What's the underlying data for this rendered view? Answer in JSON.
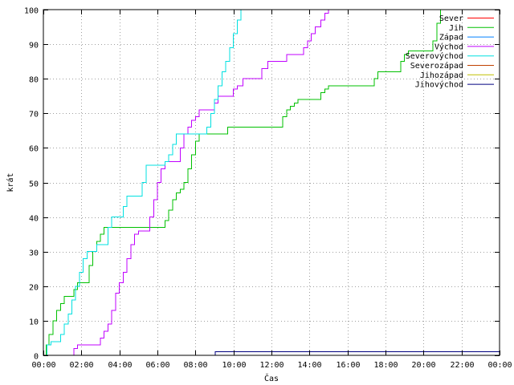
{
  "chart_data": {
    "type": "line",
    "xlabel": "Čas",
    "ylabel": "krát",
    "xlim": [
      0,
      24
    ],
    "ylim": [
      0,
      100
    ],
    "grid": true,
    "legend_position": "top-right",
    "x_tick_labels": [
      "00:00",
      "02:00",
      "04:00",
      "06:00",
      "08:00",
      "10:00",
      "12:00",
      "14:00",
      "16:00",
      "18:00",
      "20:00",
      "22:00",
      "00:00"
    ],
    "y_tick_labels": [
      "0",
      "10",
      "20",
      "30",
      "40",
      "50",
      "60",
      "70",
      "80",
      "90",
      "100"
    ],
    "series": [
      {
        "name": "Sever",
        "color": "#ff0000",
        "points": []
      },
      {
        "name": "Jih",
        "color": "#00c000",
        "points": [
          [
            0,
            0
          ],
          [
            0.15,
            3
          ],
          [
            0.3,
            6
          ],
          [
            0.5,
            10
          ],
          [
            0.7,
            13
          ],
          [
            0.9,
            15
          ],
          [
            1.1,
            17
          ],
          [
            1.4,
            17
          ],
          [
            1.6,
            19
          ],
          [
            1.8,
            21
          ],
          [
            2.2,
            21
          ],
          [
            2.4,
            26
          ],
          [
            2.6,
            30
          ],
          [
            2.8,
            33
          ],
          [
            3.0,
            35
          ],
          [
            3.2,
            37
          ],
          [
            6.2,
            37
          ],
          [
            6.4,
            39
          ],
          [
            6.6,
            42
          ],
          [
            6.8,
            45
          ],
          [
            7.0,
            47
          ],
          [
            7.2,
            48
          ],
          [
            7.4,
            50
          ],
          [
            7.6,
            54
          ],
          [
            7.8,
            58
          ],
          [
            8.0,
            62
          ],
          [
            8.2,
            64
          ],
          [
            9.6,
            64
          ],
          [
            9.7,
            66
          ],
          [
            12.5,
            66
          ],
          [
            12.6,
            69
          ],
          [
            12.8,
            71
          ],
          [
            13.0,
            72
          ],
          [
            13.2,
            73
          ],
          [
            13.4,
            74
          ],
          [
            14.3,
            74
          ],
          [
            14.6,
            76
          ],
          [
            14.8,
            77
          ],
          [
            15.0,
            78
          ],
          [
            17.2,
            78
          ],
          [
            17.4,
            80
          ],
          [
            17.6,
            82
          ],
          [
            18.6,
            82
          ],
          [
            18.8,
            85
          ],
          [
            19.0,
            87
          ],
          [
            19.2,
            88
          ],
          [
            20.3,
            88
          ],
          [
            20.5,
            91
          ],
          [
            20.7,
            96
          ],
          [
            20.9,
            100
          ]
        ]
      },
      {
        "name": "Západ",
        "color": "#0080ff",
        "points": []
      },
      {
        "name": "Východ",
        "color": "#c000ff",
        "points": [
          [
            0,
            0
          ],
          [
            1.5,
            0
          ],
          [
            1.6,
            2
          ],
          [
            1.8,
            3
          ],
          [
            2.9,
            3
          ],
          [
            3.0,
            5
          ],
          [
            3.2,
            7
          ],
          [
            3.4,
            9
          ],
          [
            3.6,
            13
          ],
          [
            3.8,
            18
          ],
          [
            4.0,
            21
          ],
          [
            4.2,
            24
          ],
          [
            4.4,
            28
          ],
          [
            4.6,
            32
          ],
          [
            4.8,
            35
          ],
          [
            5.0,
            36
          ],
          [
            5.4,
            36
          ],
          [
            5.6,
            40
          ],
          [
            5.8,
            45
          ],
          [
            6.0,
            50
          ],
          [
            6.2,
            54
          ],
          [
            6.4,
            56
          ],
          [
            7.0,
            56
          ],
          [
            7.2,
            60
          ],
          [
            7.4,
            64
          ],
          [
            7.6,
            66
          ],
          [
            7.8,
            68
          ],
          [
            8.0,
            69
          ],
          [
            8.2,
            71
          ],
          [
            8.8,
            71
          ],
          [
            9.0,
            73
          ],
          [
            9.2,
            75
          ],
          [
            9.8,
            75
          ],
          [
            10.0,
            77
          ],
          [
            10.2,
            78
          ],
          [
            10.5,
            80
          ],
          [
            11.3,
            80
          ],
          [
            11.5,
            83
          ],
          [
            11.8,
            85
          ],
          [
            12.6,
            85
          ],
          [
            12.8,
            87
          ],
          [
            13.5,
            87
          ],
          [
            13.7,
            89
          ],
          [
            13.9,
            91
          ],
          [
            14.1,
            93
          ],
          [
            14.3,
            95
          ],
          [
            14.6,
            97
          ],
          [
            14.8,
            99
          ],
          [
            15.0,
            100
          ]
        ]
      },
      {
        "name": "Severovýchod",
        "color": "#00e0e0",
        "points": [
          [
            0,
            0
          ],
          [
            0.2,
            3
          ],
          [
            0.4,
            4
          ],
          [
            0.7,
            4
          ],
          [
            0.9,
            6
          ],
          [
            1.1,
            9
          ],
          [
            1.3,
            12
          ],
          [
            1.5,
            16
          ],
          [
            1.7,
            20
          ],
          [
            1.9,
            24
          ],
          [
            2.1,
            28
          ],
          [
            2.3,
            30
          ],
          [
            2.6,
            30
          ],
          [
            2.8,
            32
          ],
          [
            3.2,
            32
          ],
          [
            3.4,
            37
          ],
          [
            3.6,
            40
          ],
          [
            4.0,
            40
          ],
          [
            4.2,
            43
          ],
          [
            4.4,
            46
          ],
          [
            5.0,
            46
          ],
          [
            5.2,
            50
          ],
          [
            5.4,
            55
          ],
          [
            6.2,
            55
          ],
          [
            6.4,
            56
          ],
          [
            6.6,
            58
          ],
          [
            6.8,
            61
          ],
          [
            7.0,
            64
          ],
          [
            8.2,
            64
          ],
          [
            8.4,
            64
          ],
          [
            8.6,
            66
          ],
          [
            8.8,
            70
          ],
          [
            9.0,
            74
          ],
          [
            9.2,
            78
          ],
          [
            9.4,
            82
          ],
          [
            9.6,
            85
          ],
          [
            9.8,
            89
          ],
          [
            10.0,
            93
          ],
          [
            10.2,
            97
          ],
          [
            10.4,
            100
          ]
        ]
      },
      {
        "name": "Severozápad",
        "color": "#c04000",
        "points": []
      },
      {
        "name": "Jihozápad",
        "color": "#c0c000",
        "points": []
      },
      {
        "name": "Jihovýchod",
        "color": "#000080",
        "points": [
          [
            0,
            0
          ],
          [
            8.95,
            0
          ],
          [
            9.05,
            1
          ],
          [
            24,
            1
          ]
        ]
      }
    ]
  }
}
